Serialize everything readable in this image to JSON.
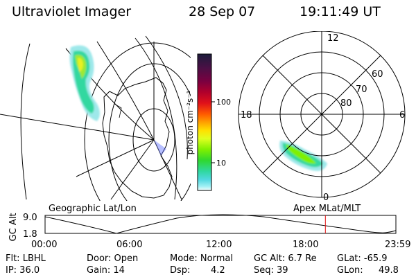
{
  "header": {
    "instrument": "Ultraviolet Imager",
    "date": "28 Sep 07",
    "time": "19:11:49 UT"
  },
  "colorbar": {
    "label": "photon cm⁻²s⁻¹",
    "ticks": [
      "100",
      "10"
    ],
    "colors": [
      "#1c1c3a",
      "#4a1045",
      "#7a0040",
      "#b0002c",
      "#e0101a",
      "#ff5a00",
      "#ffa000",
      "#ffe000",
      "#e0ff20",
      "#7ff000",
      "#2fd830",
      "#30d8a0",
      "#50d8e0",
      "#a0f0f4",
      "#f4fcfc"
    ]
  },
  "polar_plot": {
    "mlt_labels": [
      "12",
      "18",
      "6",
      "0"
    ],
    "lat_labels": [
      "60",
      "70",
      "80"
    ]
  },
  "timeline": {
    "left_label": "Geographic Lat/Lon",
    "right_label": "Apex MLat/MLT",
    "axis_title": "GC Alt",
    "y_ticks": [
      "9.0",
      "1.8"
    ],
    "x_ticks": [
      "00:00",
      "06:00",
      "12:00",
      "18:00",
      "23:59"
    ],
    "marker_time_fraction": 0.799
  },
  "status": {
    "row1": [
      "Flt: LBHL",
      "Door: Open",
      "Mode: Normal",
      "GC Alt: 6.7 Re",
      "GLat: -65.9"
    ],
    "row2_c1": "IP: 36.0",
    "row2_c2": "Gain: 14",
    "row2_c3_label": "Dsp:",
    "row2_c3_value": "4.2",
    "row2_c4": "Seq: 39",
    "row2_c5_label": "GLon:",
    "row2_c5_value": "49.8"
  }
}
